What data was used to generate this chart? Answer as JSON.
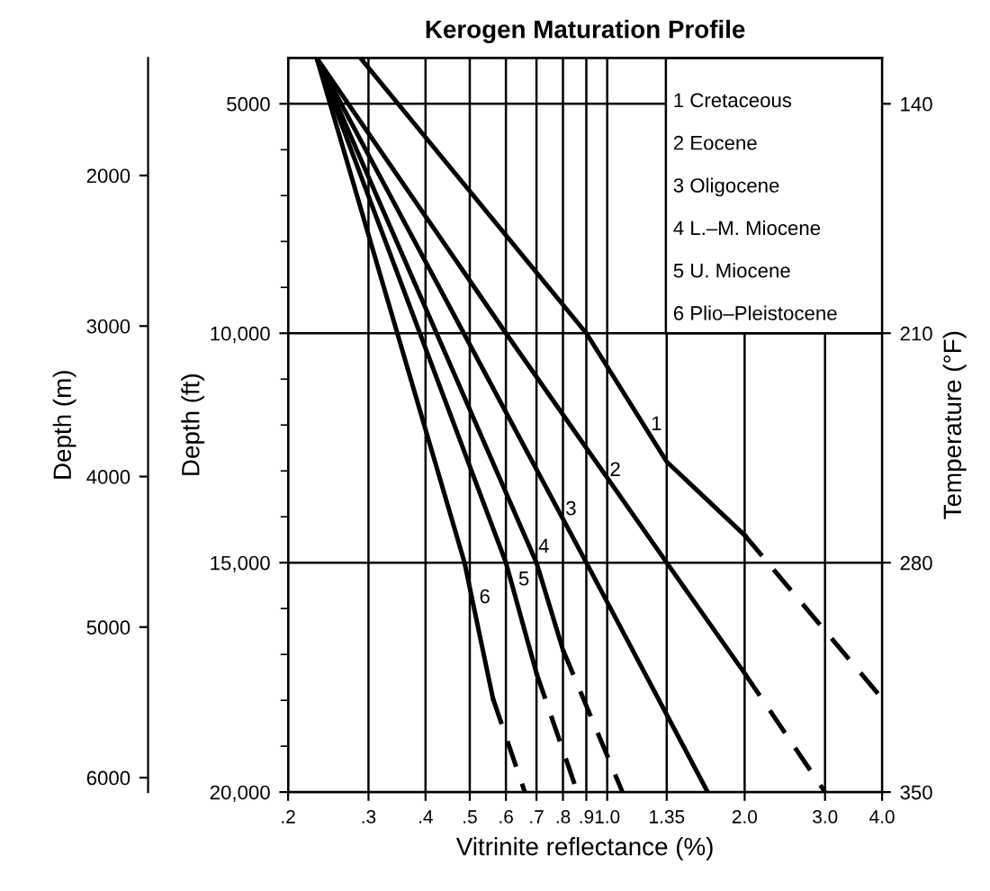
{
  "chart_data": {
    "type": "line",
    "title": "Kerogen Maturation Profile",
    "xlabel": "Vitrinite reflectance (%)",
    "ylabel": "Depth (ft)",
    "y2label": "Temperature (°F)",
    "y3label": "Depth (m)",
    "log": "x",
    "grid": true,
    "line_style": "solid",
    "xlim": [
      0.2,
      4.0
    ],
    "xticks": [
      {
        "value": 0.2,
        "label": ".2"
      },
      {
        "value": 0.3,
        "label": ".3"
      },
      {
        "value": 0.4,
        "label": ".4"
      },
      {
        "value": 0.5,
        "label": ".5"
      },
      {
        "value": 0.6,
        "label": ".6"
      },
      {
        "value": 0.7,
        "label": ".7"
      },
      {
        "value": 0.8,
        "label": ".8"
      },
      {
        "value": 0.9,
        "label": ".9"
      },
      {
        "value": 1.0,
        "label": "1.0"
      },
      {
        "value": 1.35,
        "label": "1.35"
      },
      {
        "value": 2.0,
        "label": "2.0"
      },
      {
        "value": 3.0,
        "label": "3.0"
      },
      {
        "value": 4.0,
        "label": "4.0"
      }
    ],
    "ylim": [
      20000,
      4000
    ],
    "yticks": [
      5000,
      {
        "value": 6000,
        "label": null
      },
      {
        "value": 7000,
        "label": null
      },
      {
        "value": 8000,
        "label": null
      },
      {
        "value": 9000,
        "label": null
      },
      {
        "value": 10000,
        "label": "10,000"
      },
      {
        "value": 11000,
        "label": null
      },
      {
        "value": 12000,
        "label": null
      },
      {
        "value": 13000,
        "label": null
      },
      {
        "value": 14000,
        "label": null
      },
      {
        "value": 15000,
        "label": "15,000"
      },
      {
        "value": 16000,
        "label": null
      },
      {
        "value": 17000,
        "label": null
      },
      {
        "value": 18000,
        "label": null
      },
      {
        "value": 19000,
        "label": null
      },
      {
        "value": 20000,
        "label": "20,000"
      }
    ],
    "y2lim": [
      350,
      126
    ],
    "y2ticks": [
      140,
      210,
      280,
      350
    ],
    "y3lim": [
      6096,
      1219
    ],
    "y3ticks": [
      2000,
      3000,
      4000,
      5000,
      6000
    ],
    "series": [
      {
        "color": "#000000",
        "x": [
          0.288,
          0.9,
          1.35,
          2.0
        ],
        "values": [
          4000,
          10000,
          12800,
          14400
        ]
      },
      {
        "color": "#000000",
        "x": [
          2.0,
          4.0
        ],
        "values": [
          14400,
          17960
        ],
        "line_style": "dashed"
      },
      {
        "color": "#000000",
        "x": [
          0.231,
          0.6,
          1.35,
          2.0
        ],
        "values": [
          4000,
          10000,
          15000,
          17410
        ]
      },
      {
        "color": "#000000",
        "x": [
          2.0,
          3.0
        ],
        "values": [
          17410,
          20000
        ],
        "line_style": "dashed"
      },
      {
        "color": "#000000",
        "x": [
          0.231,
          0.9,
          1.66
        ],
        "values": [
          4000,
          15000,
          20000
        ]
      },
      {
        "color": "#000000",
        "x": [
          0.231,
          0.7,
          0.8
        ],
        "values": [
          4000,
          15000,
          16900
        ]
      },
      {
        "color": "#000000",
        "x": [
          0.8,
          1.08
        ],
        "values": [
          16900,
          20000
        ],
        "line_style": "dashed"
      },
      {
        "color": "#000000",
        "x": [
          0.231,
          0.6,
          0.7
        ],
        "values": [
          4000,
          15000,
          17410
        ]
      },
      {
        "color": "#000000",
        "x": [
          0.7,
          0.86
        ],
        "values": [
          17410,
          20000
        ],
        "line_style": "dashed"
      },
      {
        "color": "#000000",
        "x": [
          0.231,
          0.487,
          0.562
        ],
        "values": [
          4000,
          15000,
          17960
        ]
      },
      {
        "color": "#000000",
        "x": [
          0.562,
          0.66
        ],
        "values": [
          17960,
          20000
        ],
        "line_style": "dashed"
      }
    ],
    "annotations": [
      "1 Cretaceous",
      "2 Eocene",
      "3 Oligocene",
      "4 L.–M. Miocene",
      "5 U. Miocene",
      "6 Plio–Pleistocene",
      {
        "text": "1",
        "x": 1.2,
        "y": 12000
      },
      {
        "text": "2",
        "x": 0.975,
        "y": 13000
      },
      {
        "text": "3",
        "x": 0.78,
        "y": 13850
      },
      {
        "text": "4",
        "x": 0.68,
        "y": 14670
      },
      {
        "text": "5",
        "x": 0.615,
        "y": 15380
      },
      {
        "text": "6",
        "x": 0.505,
        "y": 15770
      }
    ]
  }
}
